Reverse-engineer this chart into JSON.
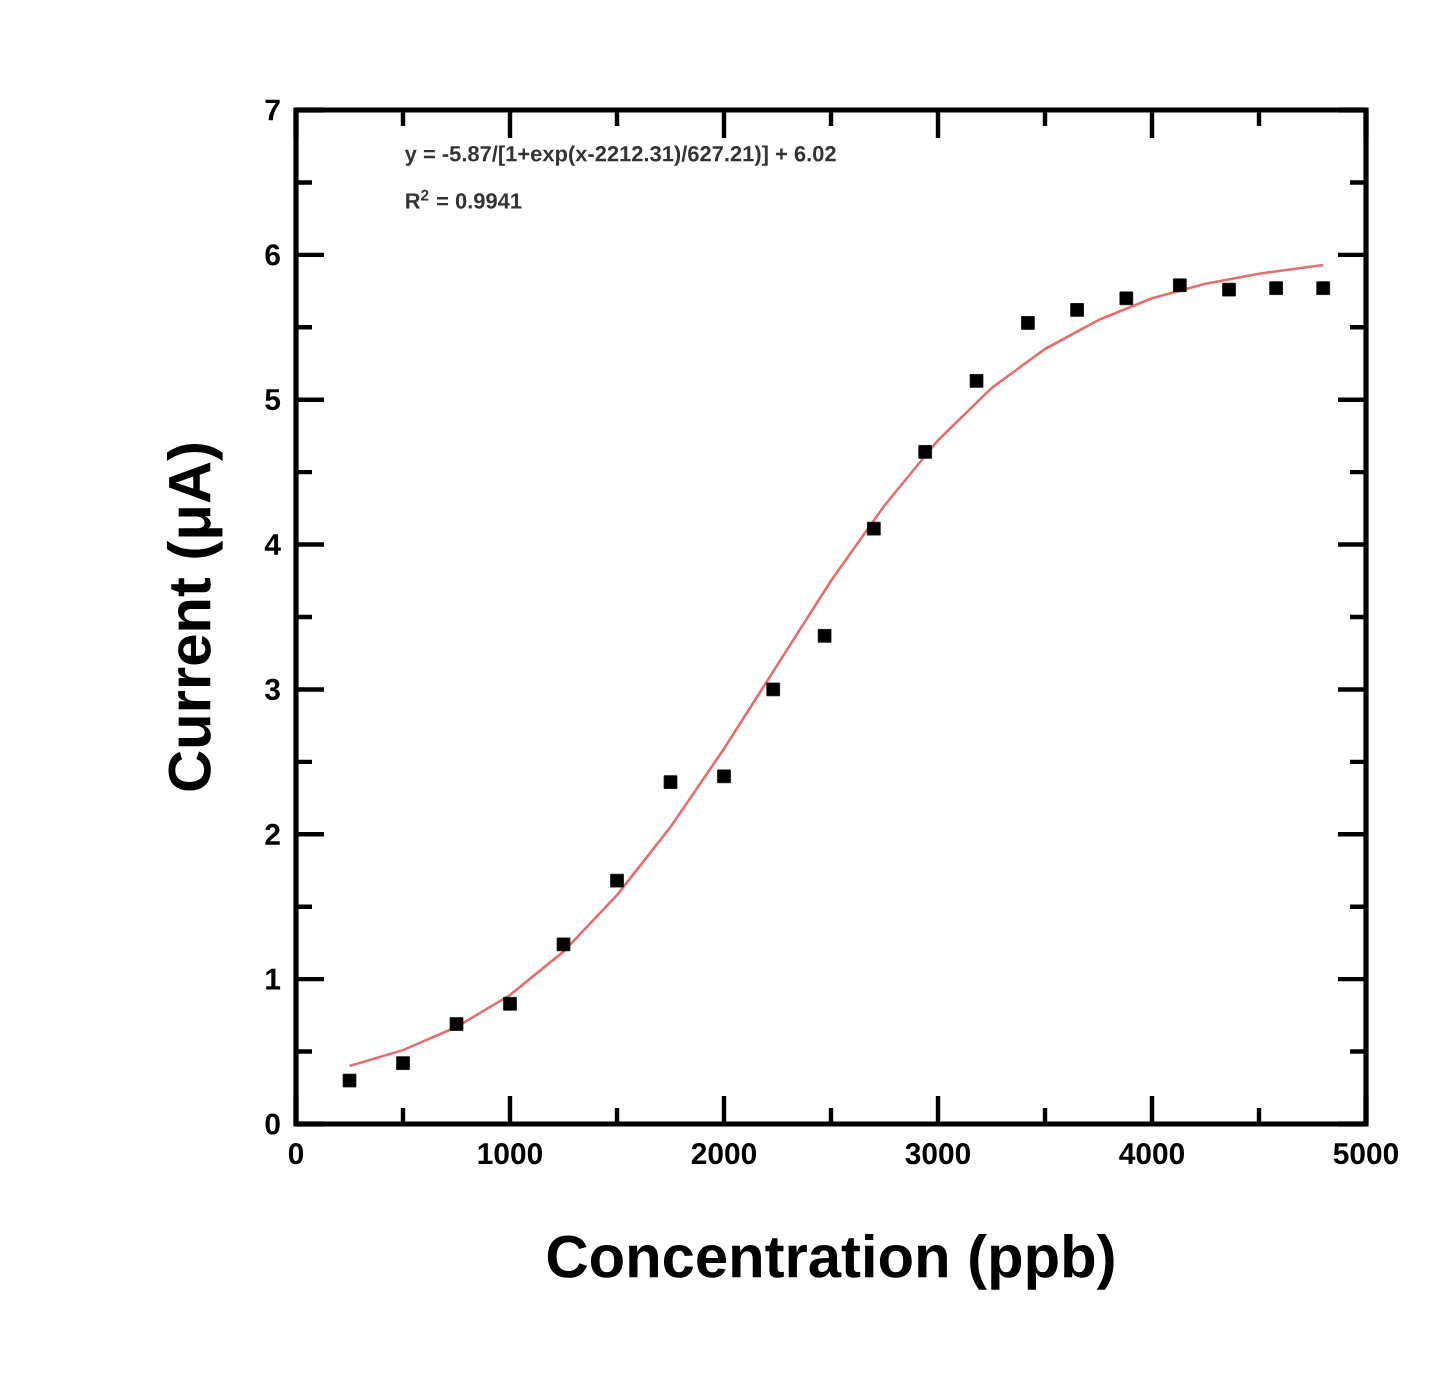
{
  "chart_data": {
    "type": "scatter",
    "xlabel": "Concentration (ppb)",
    "ylabel": "Current (μA)",
    "annotations": [
      "y = -5.87/[1+exp(x-2212.31)/627.21)] + 6.02",
      "R$^{2}$ = 0.9941"
    ],
    "xlim": [
      0,
      5000
    ],
    "ylim": [
      0,
      7
    ],
    "xticks": [
      0,
      1000,
      2000,
      3000,
      4000,
      5000
    ],
    "yticks": [
      0,
      1,
      2,
      3,
      4,
      5,
      6,
      7
    ],
    "series": [
      {
        "marker": "square",
        "color": "#000000",
        "x": [
          250,
          500,
          750,
          1000,
          1250,
          1500,
          1750,
          2000,
          2230,
          2470,
          2700,
          2940,
          3180,
          3420,
          3650,
          3880,
          4130,
          4360,
          4580,
          4800
        ],
        "values": [
          0.3,
          0.42,
          0.69,
          0.83,
          1.24,
          1.68,
          2.36,
          2.4,
          3.0,
          3.37,
          4.11,
          4.64,
          5.13,
          5.53,
          5.62,
          5.7,
          5.79,
          5.76,
          5.77,
          5.77
        ]
      },
      {
        "type": "line",
        "marker": "none",
        "line_style": "solid",
        "color": "#e07070",
        "x": [
          250,
          500,
          750,
          1000,
          1250,
          1500,
          1750,
          2000,
          2250,
          2500,
          2750,
          3000,
          3250,
          3500,
          3750,
          4000,
          4250,
          4500,
          4800
        ],
        "values": [
          0.4,
          0.51,
          0.67,
          0.89,
          1.19,
          1.58,
          2.05,
          2.59,
          3.17,
          3.75,
          4.27,
          4.72,
          5.08,
          5.35,
          5.55,
          5.7,
          5.8,
          5.87,
          5.93
        ]
      }
    ]
  }
}
